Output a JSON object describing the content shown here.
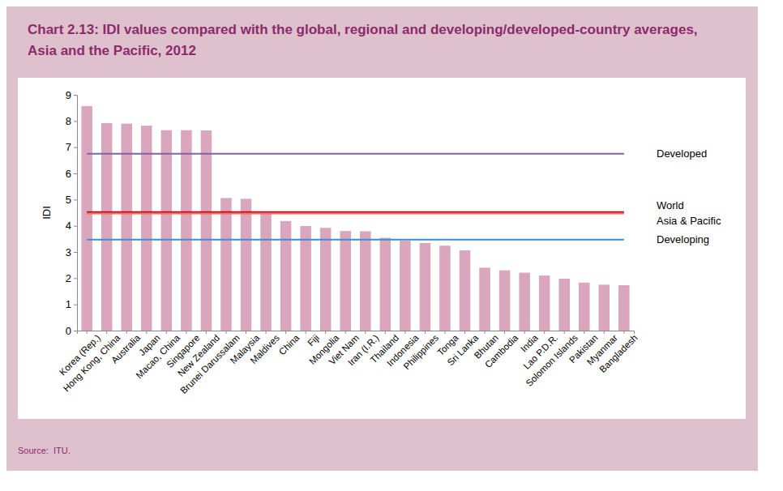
{
  "chart_data": {
    "type": "bar",
    "title": "Chart 2.13: IDI values compared with the global, regional and developing/developed-country averages, Asia and the Pacific, 2012",
    "source": "Source:  ITU.",
    "y_label": "IDI",
    "categories": [
      "Korea (Rep.)",
      "Hong Kong, China",
      "Australia",
      "Japan",
      "Macao, China",
      "Singapore",
      "New Zealand",
      "Brunei Darussalam",
      "Malaysia",
      "Maldives",
      "China",
      "Fiji",
      "Mongolia",
      "Viet Nam",
      "Iran (I.R.)",
      "Thailand",
      "Indonesia",
      "Philippines",
      "Tonga",
      "Sri Lanka",
      "Bhutan",
      "Cambodia",
      "India",
      "Lao P.D.R.",
      "Solomon Islands",
      "Pakistan",
      "Myanmar",
      "Bangladesh"
    ],
    "values": [
      8.57,
      7.92,
      7.9,
      7.82,
      7.65,
      7.65,
      7.64,
      5.06,
      5.03,
      4.48,
      4.18,
      3.99,
      3.92,
      3.8,
      3.79,
      3.54,
      3.43,
      3.34,
      3.24,
      3.06,
      2.4,
      2.3,
      2.21,
      2.1,
      1.98,
      1.83,
      1.75,
      1.73
    ],
    "color": "#d9a6bd",
    "series": [
      {
        "name": "Developed",
        "type": "line",
        "color": "#8064a2",
        "values": [
          6.75,
          6.75,
          6.75,
          6.75,
          6.75,
          6.75,
          6.75,
          6.75,
          6.75,
          6.75,
          6.75,
          6.75,
          6.75,
          6.75,
          6.75,
          6.75,
          6.75,
          6.75,
          6.75,
          6.75,
          6.75,
          6.75,
          6.75,
          6.75,
          6.75,
          6.75,
          6.75,
          6.75
        ]
      },
      {
        "name": "World",
        "type": "line",
        "color": "#c0001a",
        "values": [
          4.52,
          4.52,
          4.52,
          4.52,
          4.52,
          4.52,
          4.52,
          4.52,
          4.52,
          4.52,
          4.52,
          4.52,
          4.52,
          4.52,
          4.52,
          4.52,
          4.52,
          4.52,
          4.52,
          4.52,
          4.52,
          4.52,
          4.52,
          4.52,
          4.52,
          4.52,
          4.52,
          4.52
        ]
      },
      {
        "name": "Asia & Pacific",
        "type": "line",
        "color": "#f26b5b",
        "values": [
          4.47,
          4.47,
          4.47,
          4.47,
          4.47,
          4.47,
          4.47,
          4.47,
          4.47,
          4.47,
          4.47,
          4.47,
          4.47,
          4.47,
          4.47,
          4.47,
          4.47,
          4.47,
          4.47,
          4.47,
          4.47,
          4.47,
          4.47,
          4.47,
          4.47,
          4.47,
          4.47,
          4.47
        ]
      },
      {
        "name": "Developing",
        "type": "line",
        "color": "#3a8fd6",
        "values": [
          3.47,
          3.47,
          3.47,
          3.47,
          3.47,
          3.47,
          3.47,
          3.47,
          3.47,
          3.47,
          3.47,
          3.47,
          3.47,
          3.47,
          3.47,
          3.47,
          3.47,
          3.47,
          3.47,
          3.47,
          3.47,
          3.47,
          3.47,
          3.47,
          3.47,
          3.47,
          3.47,
          3.47
        ]
      }
    ],
    "ylim": [
      0,
      9
    ],
    "yticks": [
      0,
      1,
      2,
      3,
      4,
      5,
      6,
      7,
      8,
      9
    ],
    "grid": false
  }
}
